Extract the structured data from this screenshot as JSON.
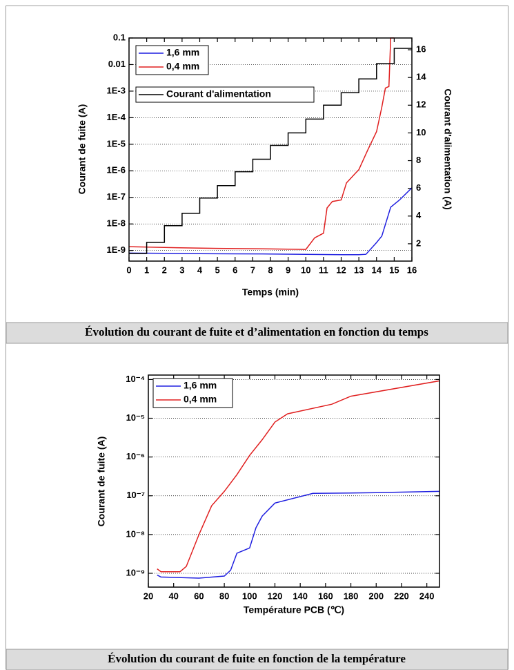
{
  "chart_data": [
    {
      "type": "line",
      "caption": "Évolution du courant de fuite et d’alimentation en fonction du temps",
      "xlabel": "Temps (min)",
      "ylabel": "Courant de fuite (A)",
      "y2label": "Courant d'alimentation (A)",
      "ylog": true,
      "grid": true,
      "xlim": [
        0,
        16
      ],
      "xticks": [
        0,
        1,
        2,
        3,
        4,
        5,
        6,
        7,
        8,
        9,
        10,
        11,
        12,
        13,
        14,
        15,
        16
      ],
      "ylim": [
        4e-10,
        0.1
      ],
      "yticks": [
        {
          "value": 1e-09,
          "label": "1E-9"
        },
        {
          "value": 1e-08,
          "label": "1E-8"
        },
        {
          "value": 1e-07,
          "label": "1E-7"
        },
        {
          "value": 1e-06,
          "label": "1E-6"
        },
        {
          "value": 1e-05,
          "label": "1E-5"
        },
        {
          "value": 0.0001,
          "label": "1E-4"
        },
        {
          "value": 0.001,
          "label": "1E-3"
        },
        0.01,
        0.1
      ],
      "y2lim": [
        0.75,
        16.85
      ],
      "y2ticks": [
        2,
        4,
        6,
        8,
        10,
        12,
        14,
        16
      ],
      "series": [
        {
          "name": "1,6 mm",
          "color": "#1f1fe0",
          "x": [
            0,
            2,
            4,
            6,
            8,
            10,
            12,
            13,
            13.4,
            14,
            14.3,
            14.8,
            15.3,
            16
          ],
          "values": [
            8e-10,
            7.8e-10,
            7.6e-10,
            7.5e-10,
            7.4e-10,
            7.2e-10,
            7e-10,
            7e-10,
            7.2e-10,
            2e-09,
            3.5e-09,
            4.3e-08,
            8e-08,
            2.3e-07
          ]
        },
        {
          "name": "0,4 mm",
          "color": "#e01f1f",
          "x": [
            0,
            2,
            5,
            8,
            10,
            10.5,
            11,
            11.2,
            11.5,
            12,
            12.3,
            12.8,
            13,
            13.5,
            14,
            14.3,
            14.5,
            14.7,
            14.8,
            15
          ],
          "values": [
            1.4e-09,
            1.3e-09,
            1.2e-09,
            1.15e-09,
            1.1e-09,
            3e-09,
            4.5e-09,
            4e-08,
            7e-08,
            8e-08,
            3.5e-07,
            8e-07,
            1.1e-06,
            6e-06,
            3e-05,
            0.00025,
            0.0013,
            0.0015,
            0.1,
            0.1
          ]
        },
        {
          "name": "Courant d'alimentation",
          "color": "#000000",
          "axis": "y2",
          "x": [
            0,
            1,
            1,
            2,
            2,
            3,
            3,
            4,
            4,
            5,
            5,
            6,
            6,
            7,
            7,
            8,
            8,
            9,
            9,
            10,
            10,
            11,
            11,
            12,
            12,
            13,
            13,
            14,
            14,
            15,
            15,
            16
          ],
          "values": [
            1.3,
            1.3,
            2.1,
            2.1,
            3.3,
            3.3,
            4.2,
            4.2,
            5.3,
            5.3,
            6.2,
            6.2,
            7.2,
            7.2,
            8.1,
            8.1,
            9.1,
            9.1,
            10.0,
            10.0,
            11.0,
            11.0,
            12.0,
            12.0,
            12.9,
            12.9,
            13.9,
            13.9,
            15.0,
            15.0,
            16.1,
            16.1
          ]
        }
      ]
    },
    {
      "type": "line",
      "caption": "Évolution du courant de fuite en fonction de la température",
      "xlabel": "Température PCB (℃)",
      "ylabel": "Courant de fuite (A)",
      "ylog": true,
      "grid": true,
      "xlim": [
        20,
        250
      ],
      "xticks": [
        20,
        40,
        60,
        80,
        100,
        120,
        140,
        160,
        180,
        200,
        220,
        240
      ],
      "ylim": [
        4.4e-10,
        0.00013
      ],
      "yticks": [
        {
          "value": 1e-09,
          "label": "10⁻⁹"
        },
        {
          "value": 1e-08,
          "label": "10⁻⁸"
        },
        {
          "value": 1e-07,
          "label": "10⁻⁷"
        },
        {
          "value": 1e-06,
          "label": "10⁻⁶"
        },
        {
          "value": 1e-05,
          "label": "10⁻⁵"
        },
        {
          "value": 0.0001,
          "label": "10⁻⁴"
        }
      ],
      "series": [
        {
          "name": "1,6 mm",
          "color": "#1f1fe0",
          "x": [
            27,
            30,
            60,
            80,
            85,
            90,
            100,
            105,
            110,
            120,
            150,
            200,
            250
          ],
          "values": [
            9e-10,
            8e-10,
            7.5e-10,
            8.5e-10,
            1.2e-09,
            3.3e-09,
            4.5e-09,
            1.5e-08,
            3e-08,
            6.5e-08,
            1.15e-07,
            1.2e-07,
            1.3e-07
          ]
        },
        {
          "name": "0,4 mm",
          "color": "#e01f1f",
          "x": [
            27,
            30,
            45,
            50,
            60,
            70,
            80,
            90,
            100,
            110,
            120,
            130,
            165,
            180,
            250
          ],
          "values": [
            1.3e-09,
            1.1e-09,
            1.1e-09,
            1.5e-09,
            1e-08,
            5.5e-08,
            1.3e-07,
            3.5e-07,
            1.1e-06,
            2.8e-06,
            8e-06,
            1.3e-05,
            2.3e-05,
            3.7e-05,
            9.2e-05
          ]
        }
      ]
    }
  ]
}
